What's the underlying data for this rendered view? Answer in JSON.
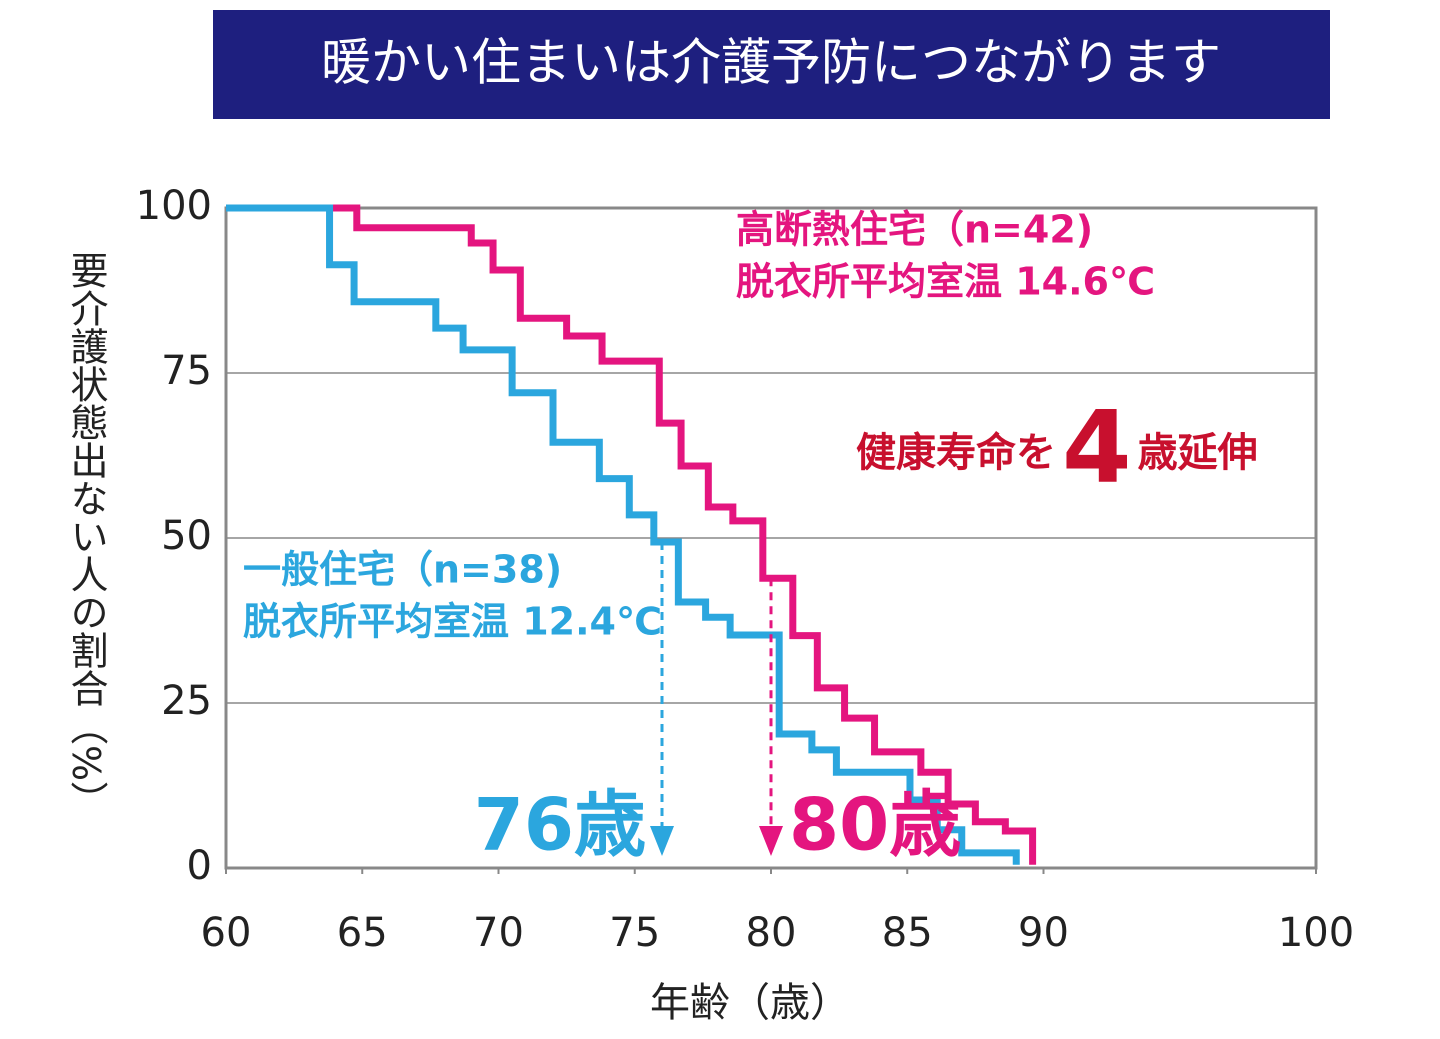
{
  "chart_data": {
    "type": "step",
    "title": "暖かい住まいは介護予防につながります",
    "x_label": "年齢（歳）",
    "y_label": "要介護状態出ない人の割合（%）",
    "xlim": [
      60,
      100
    ],
    "xticks": [
      60,
      65,
      70,
      75,
      80,
      85,
      90,
      100
    ],
    "ylim": [
      0,
      100
    ],
    "yticks": [
      0,
      25,
      50,
      75,
      100
    ],
    "grid": true,
    "series": [
      {
        "name": "高断熱住宅（n=42)",
        "subtitle": "脱衣所平均室温 14.6℃",
        "color": "#e4157f",
        "x": [
          60,
          64.8,
          69,
          69.8,
          70.8,
          72.5,
          73.8,
          75.9,
          76.7,
          77.7,
          78.6,
          79.7,
          80.8,
          81.7,
          82.7,
          83.8,
          85.5,
          86.5,
          87.5,
          88.6,
          89.6
        ],
        "values": [
          100,
          97,
          94.7,
          90.6,
          83.3,
          80.6,
          76.8,
          67.4,
          60.9,
          54.7,
          52.6,
          43.9,
          35.2,
          27.3,
          22.7,
          17.6,
          14.5,
          9.7,
          7,
          5.6,
          0.5
        ]
      },
      {
        "name": "一般住宅（n=38)",
        "subtitle": "脱衣所平均室温 12.4℃",
        "color": "#2ba6de",
        "x": [
          60,
          63.8,
          64.7,
          67.7,
          68.7,
          70.5,
          72,
          73.7,
          74.8,
          75.7,
          76.6,
          77.6,
          78.5,
          80.3,
          81.5,
          82.4,
          85.1,
          86.1,
          87,
          89
        ],
        "values": [
          100,
          91.4,
          85.8,
          81.8,
          78.5,
          72,
          64.5,
          59,
          53.5,
          49.4,
          40.3,
          38,
          35.3,
          20.3,
          17.9,
          14.5,
          10.3,
          5.8,
          2.3,
          0.5
        ]
      }
    ],
    "annotations": [
      {
        "text": "76歳",
        "x": 76,
        "color": "#2ba6de"
      },
      {
        "text": "80歳",
        "x": 80,
        "color": "#e4157f"
      }
    ],
    "callout": {
      "before": "健康寿命を",
      "number": "4",
      "after": "歳延伸",
      "color": "#c8102e"
    }
  }
}
